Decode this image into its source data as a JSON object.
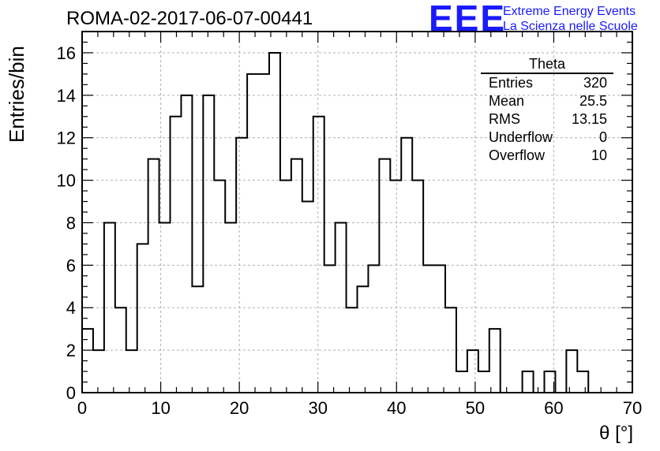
{
  "header": {
    "title": "ROMA-02-2017-06-07-00441",
    "logo": "EEE",
    "logo_line1": "Extreme Energy Events",
    "logo_line2": "La Scienza nelle Scuole"
  },
  "stats": {
    "name": "Theta",
    "rows": [
      {
        "label": "Entries",
        "value": "320"
      },
      {
        "label": "Mean",
        "value": "25.5"
      },
      {
        "label": "RMS",
        "value": "13.15"
      },
      {
        "label": "Underflow",
        "value": "0"
      },
      {
        "label": "Overflow",
        "value": "10"
      }
    ]
  },
  "colors": {
    "logo": "#1a1aff",
    "line": "#000000",
    "grid": "#b0b0b0"
  },
  "chart_data": {
    "type": "histogram",
    "xlabel": "θ [°]",
    "ylabel": "Entries/bin",
    "xlim": [
      0,
      70
    ],
    "ylim": [
      0,
      17
    ],
    "bin_width": 1.4,
    "x_start": 0,
    "xticks": [
      0,
      10,
      20,
      30,
      40,
      50,
      60,
      70
    ],
    "yticks": [
      0,
      2,
      4,
      6,
      8,
      10,
      12,
      14,
      16
    ],
    "grid": true,
    "values": [
      3,
      2,
      8,
      4,
      2,
      7,
      11,
      8,
      13,
      14,
      5,
      14,
      10,
      8,
      12,
      15,
      15,
      16,
      10,
      11,
      9,
      13,
      6,
      8,
      4,
      5,
      6,
      11,
      10,
      12,
      10,
      6,
      6,
      4,
      1,
      2,
      1,
      3,
      0,
      0,
      1,
      0,
      1,
      0,
      2,
      1,
      0,
      0,
      0,
      0
    ]
  }
}
